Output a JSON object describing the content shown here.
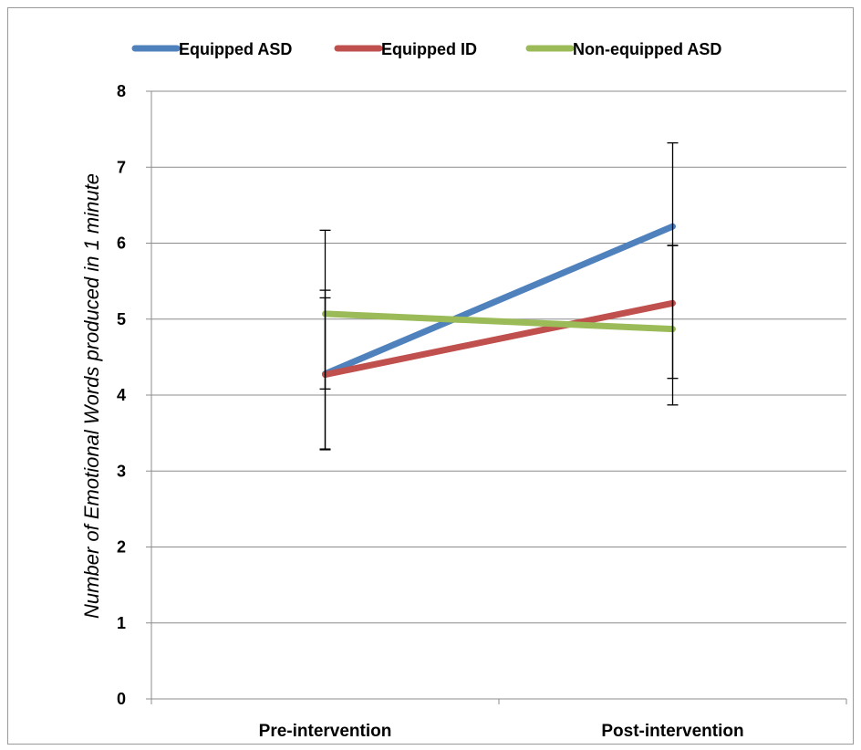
{
  "chart_data": {
    "type": "line",
    "title": "",
    "xlabel": "",
    "ylabel": "Number of Emotional Words produced in 1 minute",
    "categories": [
      "Pre-intervention",
      "Post-intervention"
    ],
    "ylim": [
      0,
      8
    ],
    "yticks": [
      0,
      1,
      2,
      3,
      4,
      5,
      6,
      7,
      8
    ],
    "grid": "horizontal",
    "legend_position": "top",
    "series": [
      {
        "name": "Equipped ASD",
        "color": "#4f81bd",
        "values": [
          4.28,
          6.22
        ],
        "error_low": [
          3.28,
          5.97
        ],
        "error_high": [
          5.28,
          7.32
        ]
      },
      {
        "name": "Equipped ID",
        "color": "#c0504d",
        "values": [
          4.27,
          5.21
        ],
        "error_low": [
          3.29,
          4.22
        ],
        "error_high": [
          5.38,
          5.97
        ]
      },
      {
        "name": "Non-equipped ASD",
        "color": "#9bbb59",
        "values": [
          5.07,
          4.87
        ],
        "error_low": [
          4.08,
          3.87
        ],
        "error_high": [
          6.17,
          5.97
        ]
      }
    ]
  }
}
